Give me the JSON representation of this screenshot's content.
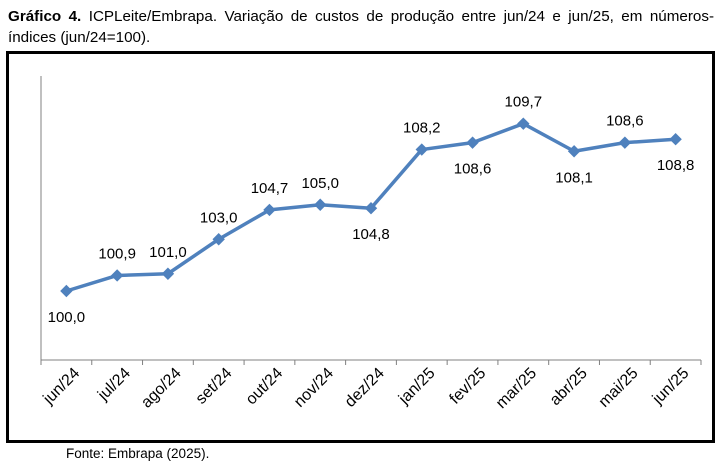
{
  "caption": {
    "label": "Gráfico 4.",
    "text": " ICPLeite/Embrapa. Variação de custos de produção entre jun/24 e jun/25, em números-índices (jun/24=100)."
  },
  "source": "Fonte: Embrapa (2025).",
  "chart_data": {
    "type": "line",
    "categories": [
      "jun/24",
      "jul/24",
      "ago/24",
      "set/24",
      "out/24",
      "nov/24",
      "dez/24",
      "jan/25",
      "fev/25",
      "mar/25",
      "abr/25",
      "mai/25",
      "jun/25"
    ],
    "series": [
      {
        "values": [
          100.0,
          100.9,
          101.0,
          103.0,
          104.7,
          105.0,
          104.8,
          108.2,
          108.6,
          109.7,
          108.1,
          108.6,
          108.8
        ],
        "labels": [
          "100,0",
          "100,9",
          "101,0",
          "103,0",
          "104,7",
          "105,0",
          "104,8",
          "108,2",
          "108,6",
          "109,7",
          "108,1",
          "108,6",
          "108,8"
        ],
        "label_positions": [
          "below",
          "above",
          "above",
          "above",
          "above",
          "above",
          "below",
          "above",
          "below",
          "above",
          "below",
          "above",
          "below"
        ],
        "color": "#4F81BD"
      }
    ],
    "ylim": [
      96,
      112
    ],
    "grid": false,
    "legend": "none",
    "axis_color": "#808080"
  }
}
